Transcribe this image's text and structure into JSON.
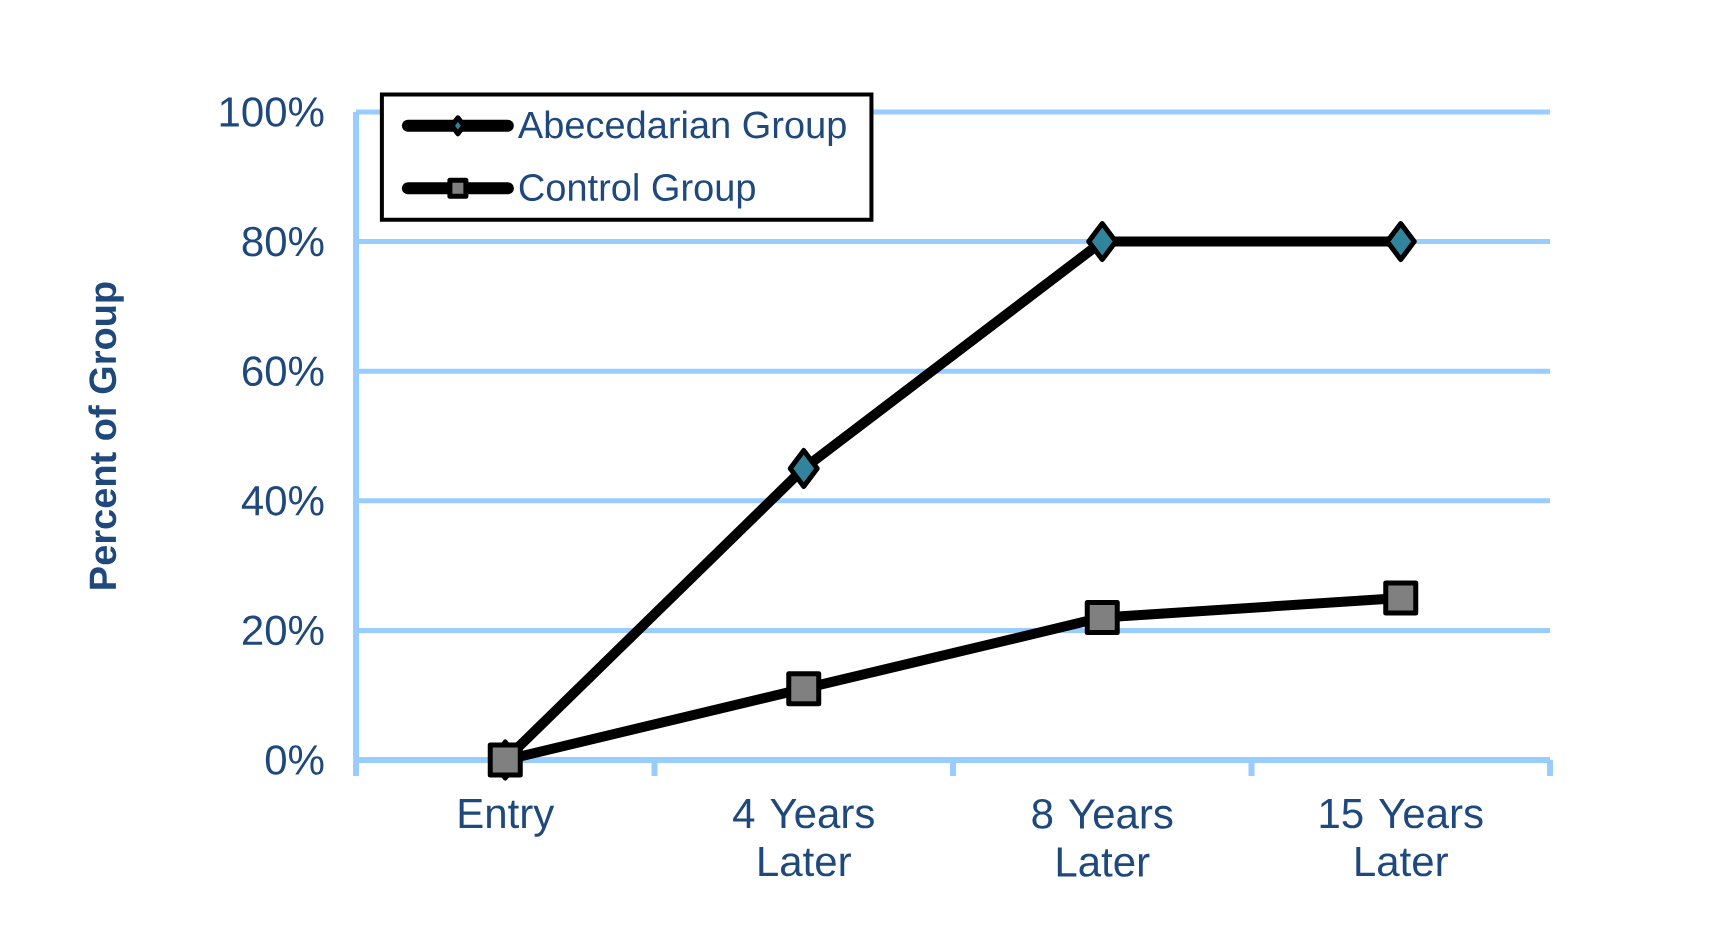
{
  "chart_data": {
    "type": "line",
    "ylabel": "Percent of Group",
    "categories": [
      "Entry",
      "4 Years Later",
      "8 Years Later",
      "15 Years Later"
    ],
    "series": [
      {
        "name": "Abecedarian Group",
        "color": "#31849b",
        "marker": "diamond",
        "values": [
          0,
          45,
          80,
          80
        ]
      },
      {
        "name": "Control Group",
        "color": "#808080",
        "marker": "square",
        "values": [
          0,
          11,
          22,
          25
        ]
      }
    ],
    "ylim": [
      0,
      100
    ],
    "yticks": [
      {
        "value": 0,
        "label": "0%"
      },
      {
        "value": 20,
        "label": "20%"
      },
      {
        "value": 40,
        "label": "40%"
      },
      {
        "value": 60,
        "label": "60%"
      },
      {
        "value": 80,
        "label": "80%"
      },
      {
        "value": 100,
        "label": "100%"
      }
    ],
    "grid": "y",
    "legend": "top left",
    "line_style": "solid"
  }
}
